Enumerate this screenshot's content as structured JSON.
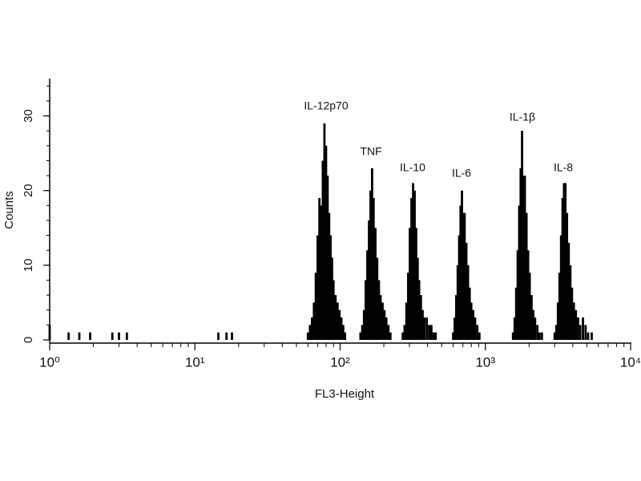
{
  "chart_data": {
    "type": "bar",
    "x_label": "FL3-Height",
    "y_label": "Counts",
    "xscale": "log",
    "xlim": [
      1,
      10000
    ],
    "xticks": [
      {
        "value": 1,
        "label": "10⁰"
      },
      {
        "value": 10,
        "label": "10¹"
      },
      {
        "value": 100,
        "label": "10²"
      },
      {
        "value": 1000,
        "label": "10³"
      },
      {
        "value": 10000,
        "label": "10⁴"
      }
    ],
    "ylim": [
      0,
      35
    ],
    "yticks": [
      0,
      10,
      20,
      30
    ],
    "color": "#000000",
    "annotations": [
      "IL-12p70",
      "TNF",
      "IL-10",
      "IL-6",
      "IL-1β",
      "IL-8"
    ],
    "x": [
      1,
      1.35,
      1.6,
      1.9,
      2.7,
      3,
      3.4,
      14.5,
      16.5,
      18,
      60,
      62,
      64,
      66,
      68,
      70,
      72,
      74,
      76,
      78,
      80,
      82,
      84,
      86,
      88,
      90,
      93,
      96,
      99,
      102,
      105,
      108,
      138,
      142,
      146,
      150,
      154,
      158,
      162,
      166,
      170,
      175,
      180,
      185,
      190,
      196,
      202,
      208,
      215,
      222,
      270,
      278,
      286,
      294,
      302,
      310,
      318,
      326,
      334,
      342,
      350,
      360,
      370,
      380,
      395,
      410,
      425,
      440,
      455,
      600,
      615,
      630,
      645,
      660,
      675,
      690,
      705,
      720,
      740,
      760,
      780,
      800,
      825,
      850,
      880,
      910,
      1550,
      1590,
      1630,
      1670,
      1710,
      1750,
      1790,
      1830,
      1870,
      1920,
      1970,
      2020,
      2080,
      2140,
      2200,
      2280,
      2360,
      2450,
      3000,
      3080,
      3160,
      3240,
      3320,
      3400,
      3480,
      3560,
      3650,
      3750,
      3850,
      3950,
      4070,
      4200,
      4350,
      4500,
      4700,
      4900,
      5100,
      5400
    ],
    "values": [
      2,
      1,
      1,
      1,
      1,
      1,
      1,
      1,
      1,
      1,
      1,
      2,
      3,
      5,
      9,
      14,
      19,
      18,
      24,
      29,
      26,
      22,
      17,
      14,
      11,
      8,
      6,
      5,
      4,
      3,
      2,
      1,
      1,
      2,
      4,
      8,
      12,
      16,
      20,
      23,
      19,
      15,
      11,
      8,
      6,
      5,
      4,
      3,
      2,
      1,
      1,
      2,
      5,
      9,
      15,
      19,
      21,
      20,
      15,
      11,
      8,
      6,
      4,
      3,
      3,
      2,
      2,
      1,
      1,
      1,
      3,
      6,
      10,
      14,
      18,
      20,
      17,
      17,
      13,
      10,
      7,
      5,
      4,
      3,
      2,
      1,
      1,
      3,
      7,
      12,
      18,
      23,
      28,
      22,
      22,
      17,
      12,
      9,
      6,
      4,
      3,
      2,
      1,
      1,
      1,
      2,
      5,
      9,
      14,
      19,
      21,
      21,
      17,
      13,
      10,
      7,
      5,
      4,
      3,
      2,
      3,
      2,
      1,
      1
    ]
  }
}
